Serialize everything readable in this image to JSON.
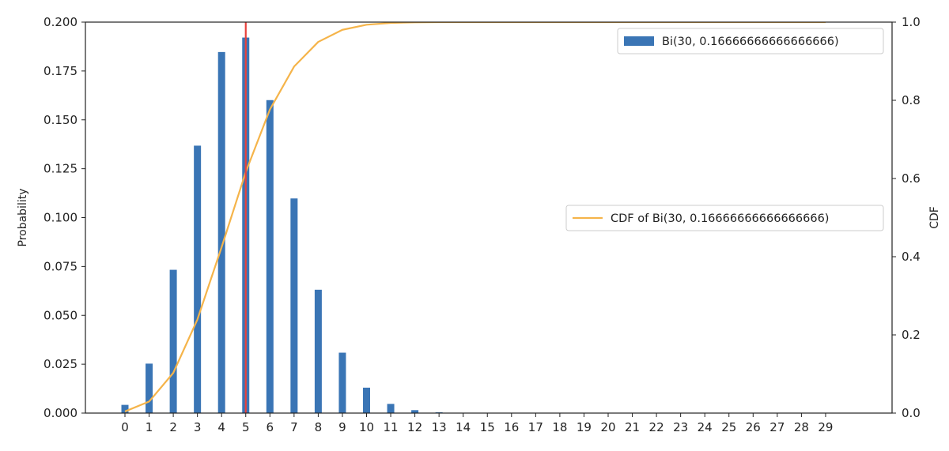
{
  "chart_data": {
    "type": "bar",
    "categories": [
      "0",
      "1",
      "2",
      "3",
      "4",
      "5",
      "6",
      "7",
      "8",
      "9",
      "10",
      "11",
      "12",
      "13",
      "14",
      "15",
      "16",
      "17",
      "18",
      "19",
      "20",
      "21",
      "22",
      "23",
      "24",
      "25",
      "26",
      "27",
      "28",
      "29"
    ],
    "x": [
      0,
      1,
      2,
      3,
      4,
      5,
      6,
      7,
      8,
      9,
      10,
      11,
      12,
      13,
      14,
      15,
      16,
      17,
      18,
      19,
      20,
      21,
      22,
      23,
      24,
      25,
      26,
      27,
      28,
      29
    ],
    "series": [
      {
        "name": "Bi(30, 0.16666666666666666)",
        "type": "bar",
        "axis": "left",
        "color": "#3a75b5",
        "values": [
          0.0042,
          0.0253,
          0.0733,
          0.1368,
          0.1847,
          0.1921,
          0.1601,
          0.1098,
          0.0631,
          0.0309,
          0.013,
          0.0047,
          0.0015,
          0.0004,
          0.0001,
          0,
          0,
          0,
          0,
          0,
          0,
          0,
          0,
          0,
          0,
          0,
          0,
          0,
          0,
          0
        ]
      },
      {
        "name": "CDF of Bi(30, 0.16666666666666666)",
        "type": "line",
        "axis": "right",
        "color": "#f5b44a",
        "values": [
          0.0042,
          0.0295,
          0.1028,
          0.2396,
          0.4243,
          0.6164,
          0.7765,
          0.8863,
          0.9494,
          0.9803,
          0.9933,
          0.998,
          0.9995,
          0.9999,
          1.0,
          1.0,
          1.0,
          1.0,
          1.0,
          1.0,
          1.0,
          1.0,
          1.0,
          1.0,
          1.0,
          1.0,
          1.0,
          1.0,
          1.0,
          1.0
        ]
      }
    ],
    "vline": {
      "x": 5,
      "color": "#e8413c"
    },
    "ylabel": "Probability",
    "y2label": "CDF",
    "ylim": [
      0,
      0.2
    ],
    "y2lim": [
      0,
      1.0
    ],
    "yticks": [
      "0.000",
      "0.025",
      "0.050",
      "0.075",
      "0.100",
      "0.125",
      "0.150",
      "0.175",
      "0.200"
    ],
    "y2ticks": [
      "0.0",
      "0.2",
      "0.4",
      "0.6",
      "0.8",
      "1.0"
    ],
    "grid": false,
    "legends": [
      "upper right",
      "center right"
    ]
  }
}
